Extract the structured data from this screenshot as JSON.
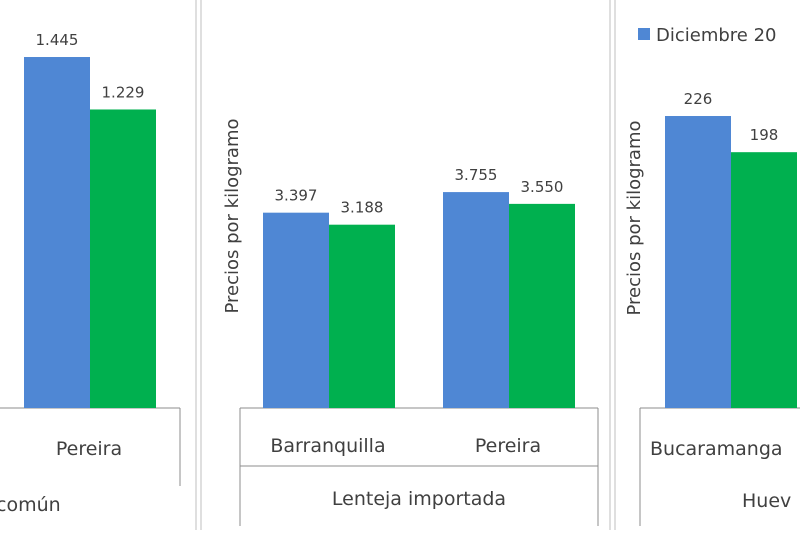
{
  "colors": {
    "series1": "#4f87d4",
    "series2": "#00b04f",
    "frame": "#bfbfbf",
    "axis": "#8c8c8c",
    "text": "#404040"
  },
  "legend": {
    "label": "Diciembre 20"
  },
  "chart_data": [
    {
      "type": "bar",
      "product": "común",
      "categories": [
        "Pereira"
      ],
      "series": [
        {
          "values": [
            1445
          ],
          "labels": [
            "1.445"
          ]
        },
        {
          "values": [
            1229
          ],
          "labels": [
            "1.229"
          ]
        }
      ]
    },
    {
      "type": "bar",
      "product": "Lenteja importada",
      "ylabel": "Precios por kilogramo",
      "categories": [
        "Barranquilla",
        "Pereira"
      ],
      "series": [
        {
          "values": [
            3397,
            3755
          ],
          "labels": [
            "3.397",
            "3.755"
          ]
        },
        {
          "values": [
            3188,
            3550
          ],
          "labels": [
            "3.188",
            "3.550"
          ]
        }
      ]
    },
    {
      "type": "bar",
      "product": "Huev",
      "ylabel": "Precios por kilogramo",
      "categories": [
        "Bucaramanga"
      ],
      "series": [
        {
          "values": [
            226
          ],
          "labels": [
            "226"
          ]
        },
        {
          "values": [
            198
          ],
          "labels": [
            "198"
          ]
        }
      ]
    }
  ]
}
